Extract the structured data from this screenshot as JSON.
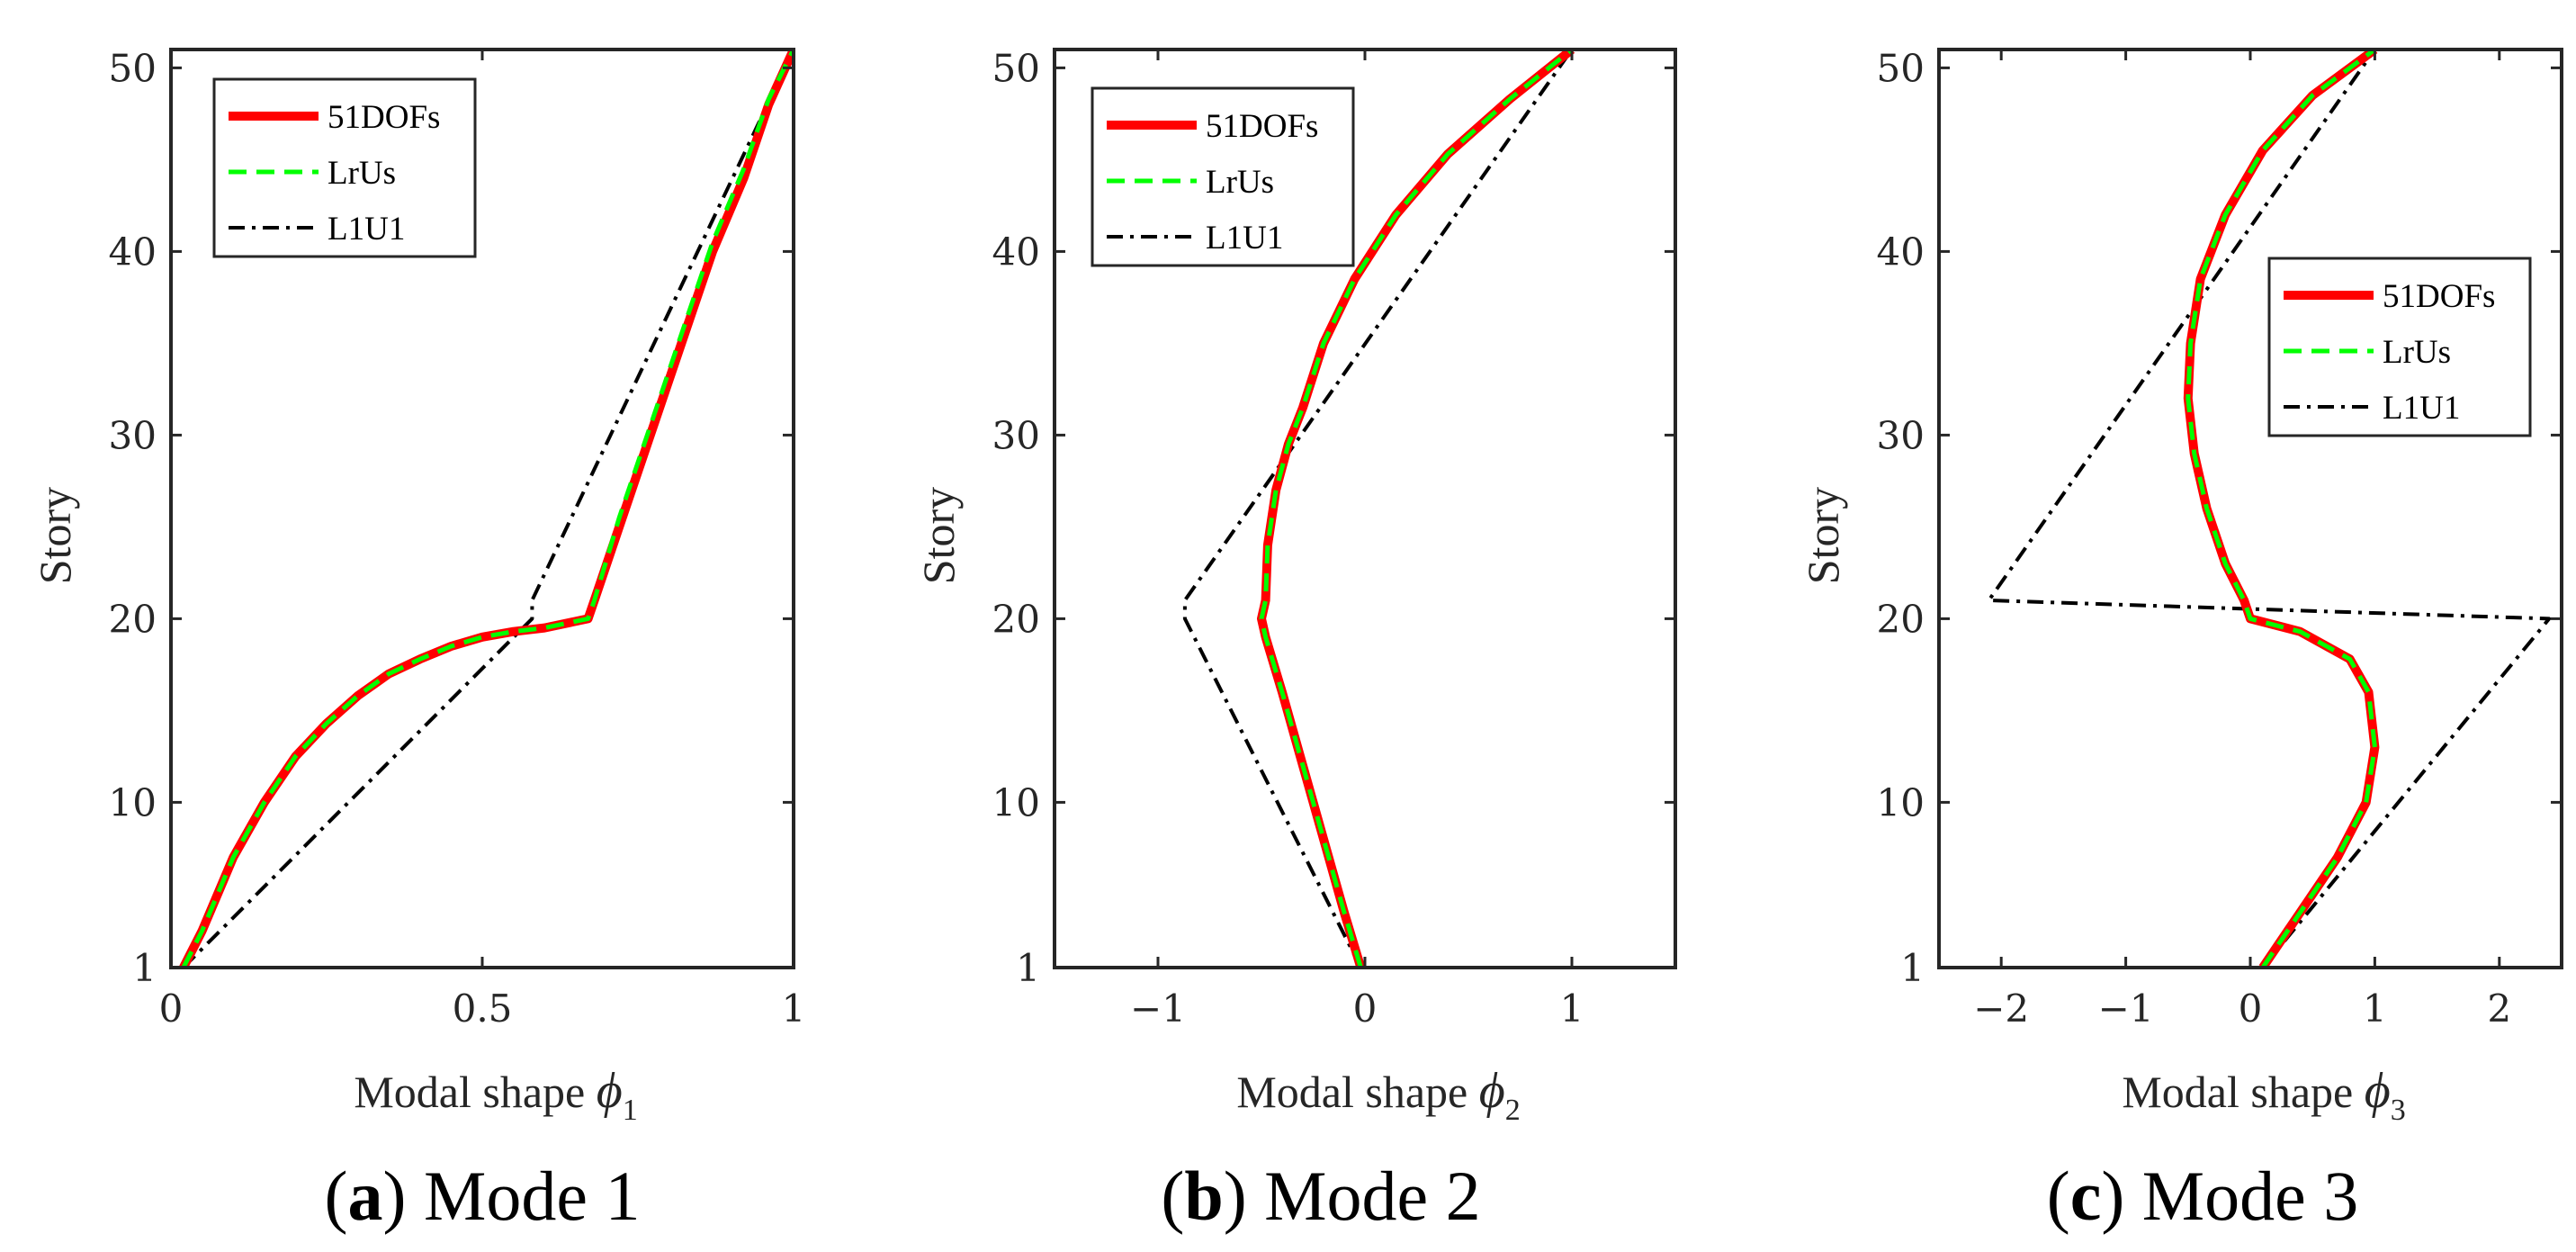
{
  "figure": {
    "common_ylabel": "Story",
    "xlabel_prefix": "Modal shape",
    "phi_symbol": "ϕ"
  },
  "chart_data": [
    {
      "type": "line",
      "caption_letter": "a",
      "caption_text": "Mode 1",
      "xlabel": "Modal shape ϕ1",
      "xlabel_subscript": "1",
      "ylabel": "Story",
      "xlim": [
        0,
        1
      ],
      "ylim": [
        1,
        51
      ],
      "xticks": [
        0,
        0.5,
        1
      ],
      "xtick_labels": [
        "0",
        "0.5",
        "1"
      ],
      "yticks": [
        1,
        10,
        20,
        30,
        40,
        50
      ],
      "ytick_labels": [
        "1",
        "10",
        "20",
        "30",
        "40",
        "50"
      ],
      "legend_position": "top-left",
      "series": [
        {
          "name": "51DOFs",
          "color": "#ff0000",
          "style": "solid",
          "points": [
            [
              0.02,
              1
            ],
            [
              0.05,
              3
            ],
            [
              0.1,
              7
            ],
            [
              0.15,
              10
            ],
            [
              0.2,
              12.5
            ],
            [
              0.25,
              14.3
            ],
            [
              0.3,
              15.8
            ],
            [
              0.35,
              17
            ],
            [
              0.4,
              17.8
            ],
            [
              0.45,
              18.5
            ],
            [
              0.5,
              19
            ],
            [
              0.55,
              19.3
            ],
            [
              0.6,
              19.5
            ],
            [
              0.67,
              20
            ],
            [
              0.68,
              21
            ],
            [
              0.72,
              25
            ],
            [
              0.77,
              30
            ],
            [
              0.82,
              35
            ],
            [
              0.87,
              40
            ],
            [
              0.92,
              44
            ],
            [
              0.96,
              48
            ],
            [
              1,
              51
            ]
          ]
        },
        {
          "name": "LrUs",
          "color": "#00ff00",
          "style": "dashed",
          "points": [
            [
              0.02,
              1
            ],
            [
              0.05,
              3
            ],
            [
              0.1,
              7
            ],
            [
              0.15,
              10
            ],
            [
              0.2,
              12.5
            ],
            [
              0.25,
              14.3
            ],
            [
              0.3,
              15.8
            ],
            [
              0.35,
              17
            ],
            [
              0.4,
              17.8
            ],
            [
              0.45,
              18.5
            ],
            [
              0.5,
              19
            ],
            [
              0.55,
              19.3
            ],
            [
              0.6,
              19.5
            ],
            [
              0.67,
              20
            ],
            [
              0.68,
              21
            ],
            [
              0.72,
              25.5
            ],
            [
              0.77,
              30.5
            ],
            [
              0.82,
              35.5
            ],
            [
              0.87,
              40.5
            ],
            [
              0.92,
              44.5
            ],
            [
              0.96,
              48.3
            ],
            [
              1,
              51
            ]
          ]
        },
        {
          "name": "L1U1",
          "color": "#000000",
          "style": "dashdot",
          "points": [
            [
              0.02,
              1
            ],
            [
              0.58,
              20
            ],
            [
              0.58,
              21
            ],
            [
              1,
              51
            ]
          ]
        }
      ]
    },
    {
      "type": "line",
      "caption_letter": "b",
      "caption_text": "Mode 2",
      "xlabel": "Modal shape ϕ2",
      "xlabel_subscript": "2",
      "ylabel": "Story",
      "xlim": [
        -1.5,
        1.5
      ],
      "ylim": [
        1,
        51
      ],
      "xticks": [
        -1,
        0,
        1
      ],
      "xtick_labels": [
        "−1",
        "0",
        "1"
      ],
      "yticks": [
        1,
        10,
        20,
        30,
        40,
        50
      ],
      "ytick_labels": [
        "1",
        "10",
        "20",
        "30",
        "40",
        "50"
      ],
      "legend_position": "top-left",
      "series": [
        {
          "name": "51DOFs",
          "color": "#ff0000",
          "style": "solid",
          "points": [
            [
              -0.02,
              1
            ],
            [
              -0.1,
              4
            ],
            [
              -0.2,
              8
            ],
            [
              -0.3,
              12
            ],
            [
              -0.4,
              16
            ],
            [
              -0.48,
              19
            ],
            [
              -0.5,
              20
            ],
            [
              -0.48,
              21
            ],
            [
              -0.47,
              24
            ],
            [
              -0.43,
              27
            ],
            [
              -0.37,
              29.5
            ],
            [
              -0.3,
              31.5
            ],
            [
              -0.2,
              35
            ],
            [
              -0.05,
              38.5
            ],
            [
              0.15,
              42
            ],
            [
              0.4,
              45.3
            ],
            [
              0.7,
              48.3
            ],
            [
              1,
              51
            ]
          ]
        },
        {
          "name": "LrUs",
          "color": "#00ff00",
          "style": "dashed",
          "points": [
            [
              -0.02,
              1
            ],
            [
              -0.1,
              4
            ],
            [
              -0.2,
              8
            ],
            [
              -0.3,
              12
            ],
            [
              -0.4,
              16
            ],
            [
              -0.48,
              19
            ],
            [
              -0.5,
              20
            ],
            [
              -0.48,
              21
            ],
            [
              -0.47,
              24
            ],
            [
              -0.43,
              27
            ],
            [
              -0.37,
              29.5
            ],
            [
              -0.3,
              31.5
            ],
            [
              -0.2,
              35
            ],
            [
              -0.05,
              38.5
            ],
            [
              0.15,
              42
            ],
            [
              0.4,
              45.3
            ],
            [
              0.7,
              48.3
            ],
            [
              1,
              51
            ]
          ]
        },
        {
          "name": "L1U1",
          "color": "#000000",
          "style": "dashdot",
          "points": [
            [
              -0.02,
              1
            ],
            [
              -0.87,
              20
            ],
            [
              -0.87,
              21
            ],
            [
              1,
              51
            ]
          ]
        }
      ]
    },
    {
      "type": "line",
      "caption_letter": "c",
      "caption_text": "Mode 3",
      "xlabel": "Modal shape ϕ3",
      "xlabel_subscript": "3",
      "ylabel": "Story",
      "xlim": [
        -2.5,
        2.5
      ],
      "ylim": [
        1,
        51
      ],
      "xticks": [
        -2,
        -1,
        0,
        1,
        2
      ],
      "xtick_labels": [
        "−2",
        "−1",
        "0",
        "1",
        "2"
      ],
      "yticks": [
        1,
        10,
        20,
        30,
        40,
        50
      ],
      "ytick_labels": [
        "1",
        "10",
        "20",
        "30",
        "40",
        "50"
      ],
      "legend_position": "top-right",
      "series": [
        {
          "name": "51DOFs",
          "color": "#ff0000",
          "style": "solid",
          "points": [
            [
              0.1,
              1
            ],
            [
              0.4,
              4
            ],
            [
              0.7,
              7
            ],
            [
              0.93,
              10
            ],
            [
              1,
              13
            ],
            [
              0.95,
              16
            ],
            [
              0.8,
              17.8
            ],
            [
              0.4,
              19.3
            ],
            [
              0,
              20
            ],
            [
              -0.05,
              21
            ],
            [
              -0.2,
              23
            ],
            [
              -0.35,
              26
            ],
            [
              -0.45,
              29
            ],
            [
              -0.5,
              32
            ],
            [
              -0.48,
              35
            ],
            [
              -0.4,
              38.5
            ],
            [
              -0.2,
              42
            ],
            [
              0.1,
              45.5
            ],
            [
              0.5,
              48.5
            ],
            [
              1,
              51
            ]
          ]
        },
        {
          "name": "LrUs",
          "color": "#00ff00",
          "style": "dashed",
          "points": [
            [
              0.1,
              1
            ],
            [
              0.4,
              4
            ],
            [
              0.7,
              7
            ],
            [
              0.93,
              10
            ],
            [
              1,
              13
            ],
            [
              0.95,
              16
            ],
            [
              0.8,
              17.8
            ],
            [
              0.4,
              19.3
            ],
            [
              0,
              20
            ],
            [
              -0.05,
              21
            ],
            [
              -0.2,
              23
            ],
            [
              -0.35,
              26
            ],
            [
              -0.45,
              29
            ],
            [
              -0.5,
              32
            ],
            [
              -0.48,
              35
            ],
            [
              -0.4,
              38.5
            ],
            [
              -0.2,
              42
            ],
            [
              0.1,
              45.5
            ],
            [
              0.5,
              48.5
            ],
            [
              1,
              51
            ]
          ]
        },
        {
          "name": "L1U1",
          "color": "#000000",
          "style": "dashdot",
          "points": [
            [
              0.1,
              1
            ],
            [
              2.4,
              20
            ],
            [
              -2.1,
              21
            ],
            [
              1,
              51
            ]
          ]
        }
      ]
    }
  ]
}
